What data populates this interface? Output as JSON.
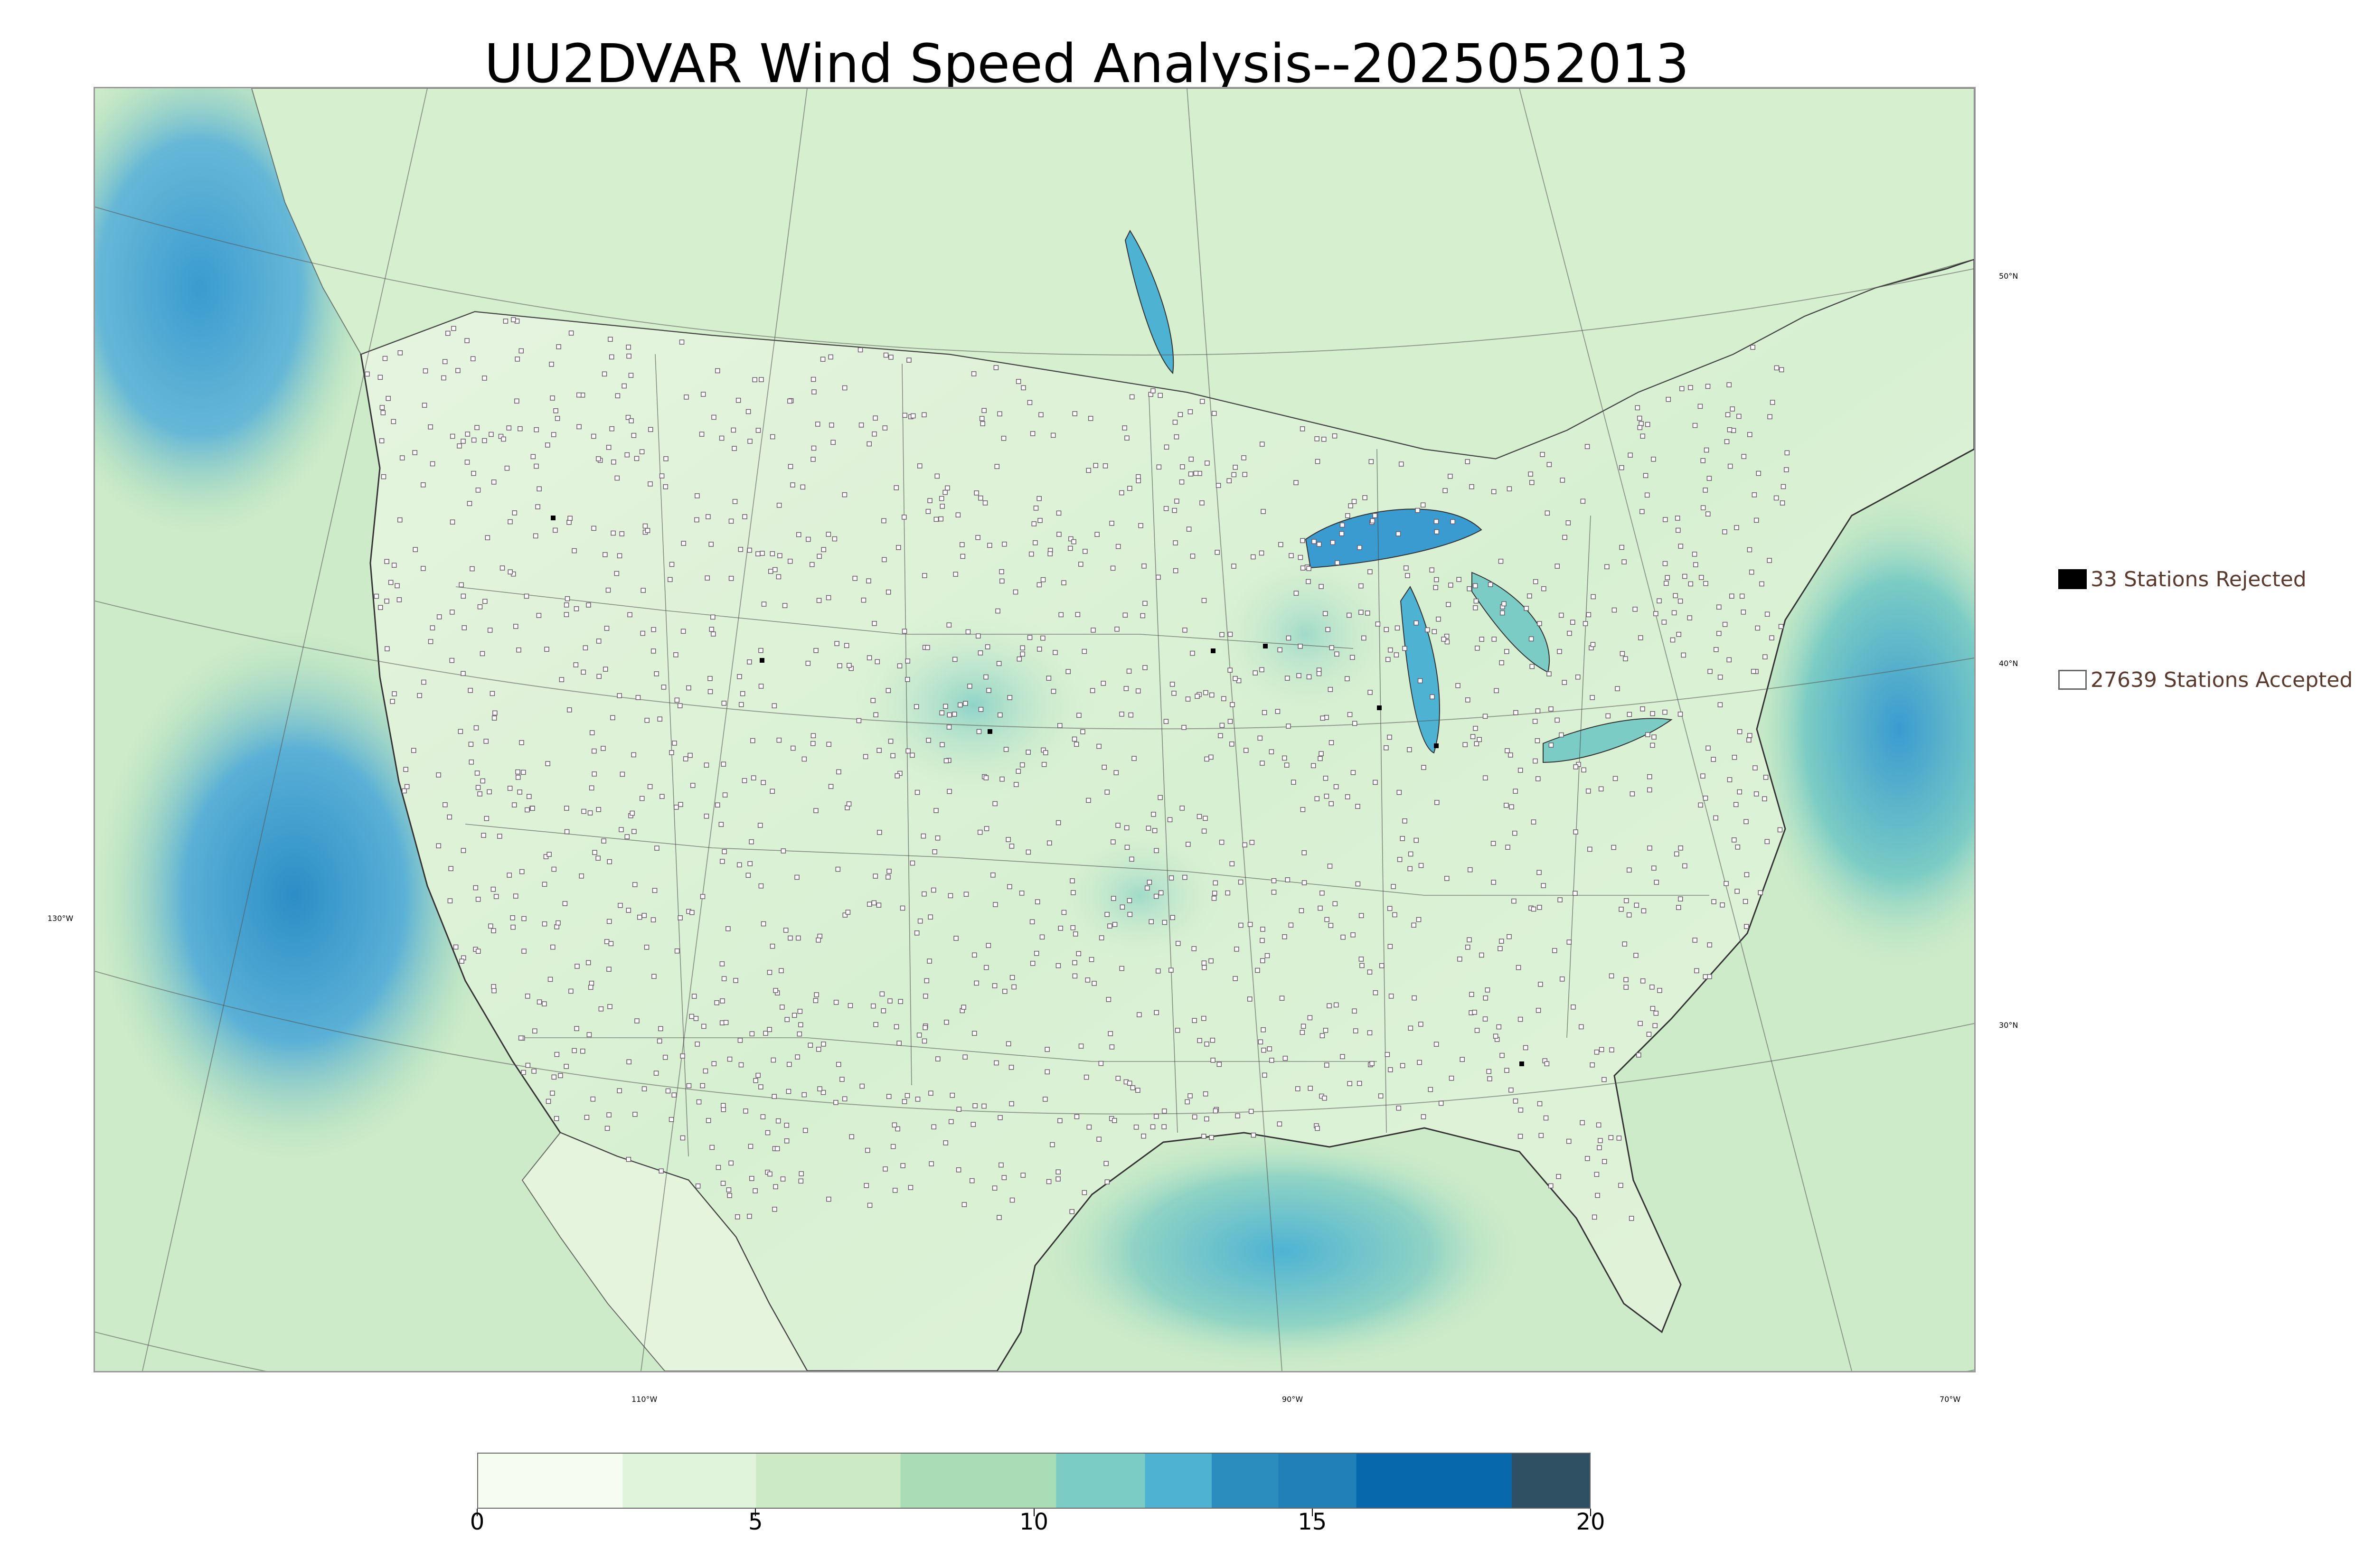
{
  "title": "UU2DVAR Wind Speed Analysis--2025052013",
  "map": {
    "longitude_labels": [
      "130°W",
      "110°W",
      "90°W",
      "70°W"
    ],
    "latitude_labels": [
      "50°N",
      "40°N",
      "30°N"
    ]
  },
  "legend": {
    "rejected": {
      "label": "33 Stations Rejected",
      "count": 33,
      "color": "#000000"
    },
    "accepted": {
      "label": "27639 Stations Accepted",
      "count": 27639,
      "color": "#ffffff"
    }
  },
  "colorbar": {
    "ticks": [
      "0",
      "5",
      "10",
      "15",
      "20"
    ],
    "range": [
      0,
      20
    ],
    "colors": [
      "#f7fcf0",
      "#e0f3db",
      "#ccebc5",
      "#a8ddb5",
      "#7bccc4",
      "#4eb3d3",
      "#2b8cbe",
      "#2180b8",
      "#0868ac",
      "#2f4f63"
    ]
  },
  "colors": {
    "ocean_strong": "#3a9bd0",
    "land_light": "#eef8e8",
    "boundary": "#333333"
  }
}
